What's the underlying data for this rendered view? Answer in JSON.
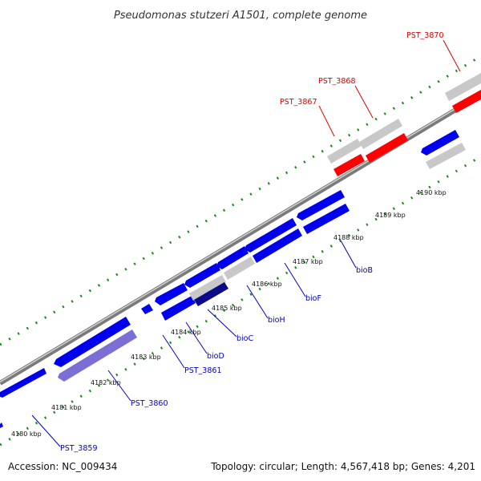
{
  "title": "Pseudomonas stutzeri A1501, complete genome",
  "footer": {
    "accession": "Accession: NC_009434",
    "topology": "Topology: circular; Length: 4,567,418 bp; Genes: 4,201"
  },
  "colors": {
    "background": "#ffffff",
    "backbone": "#8a8a8a",
    "tick": "#1a8a1a",
    "gene_blue": "#0000ee",
    "gene_red": "#ff0000",
    "gene_gray": "#c0c0c0",
    "gene_purple": "#7b6fd6",
    "label_blue": "#0000cc",
    "label_red": "#dd0000"
  },
  "scale": [
    {
      "label": "4180 kbp"
    },
    {
      "label": "4181 kbp"
    },
    {
      "label": "4182 kbp"
    },
    {
      "label": "4183 kbp"
    },
    {
      "label": "4184 kbp"
    },
    {
      "label": "4185 kbp"
    },
    {
      "label": "4186 kbp"
    },
    {
      "label": "4187 kbp"
    },
    {
      "label": "4188 kbp"
    },
    {
      "label": "4189 kbp"
    },
    {
      "label": "4190 kbp"
    }
  ],
  "gene_labels": [
    {
      "text": "PST_3859",
      "color": "blue"
    },
    {
      "text": "PST_3860",
      "color": "blue"
    },
    {
      "text": "PST_3861",
      "color": "blue"
    },
    {
      "text": "bioD",
      "color": "blue"
    },
    {
      "text": "bioC",
      "color": "blue"
    },
    {
      "text": "bioH",
      "color": "blue"
    },
    {
      "text": "bioF",
      "color": "blue"
    },
    {
      "text": "bioB",
      "color": "blue"
    },
    {
      "text": "PST_3867",
      "color": "red"
    },
    {
      "text": "PST_3868",
      "color": "red"
    },
    {
      "text": "PST_3870",
      "color": "red"
    }
  ]
}
